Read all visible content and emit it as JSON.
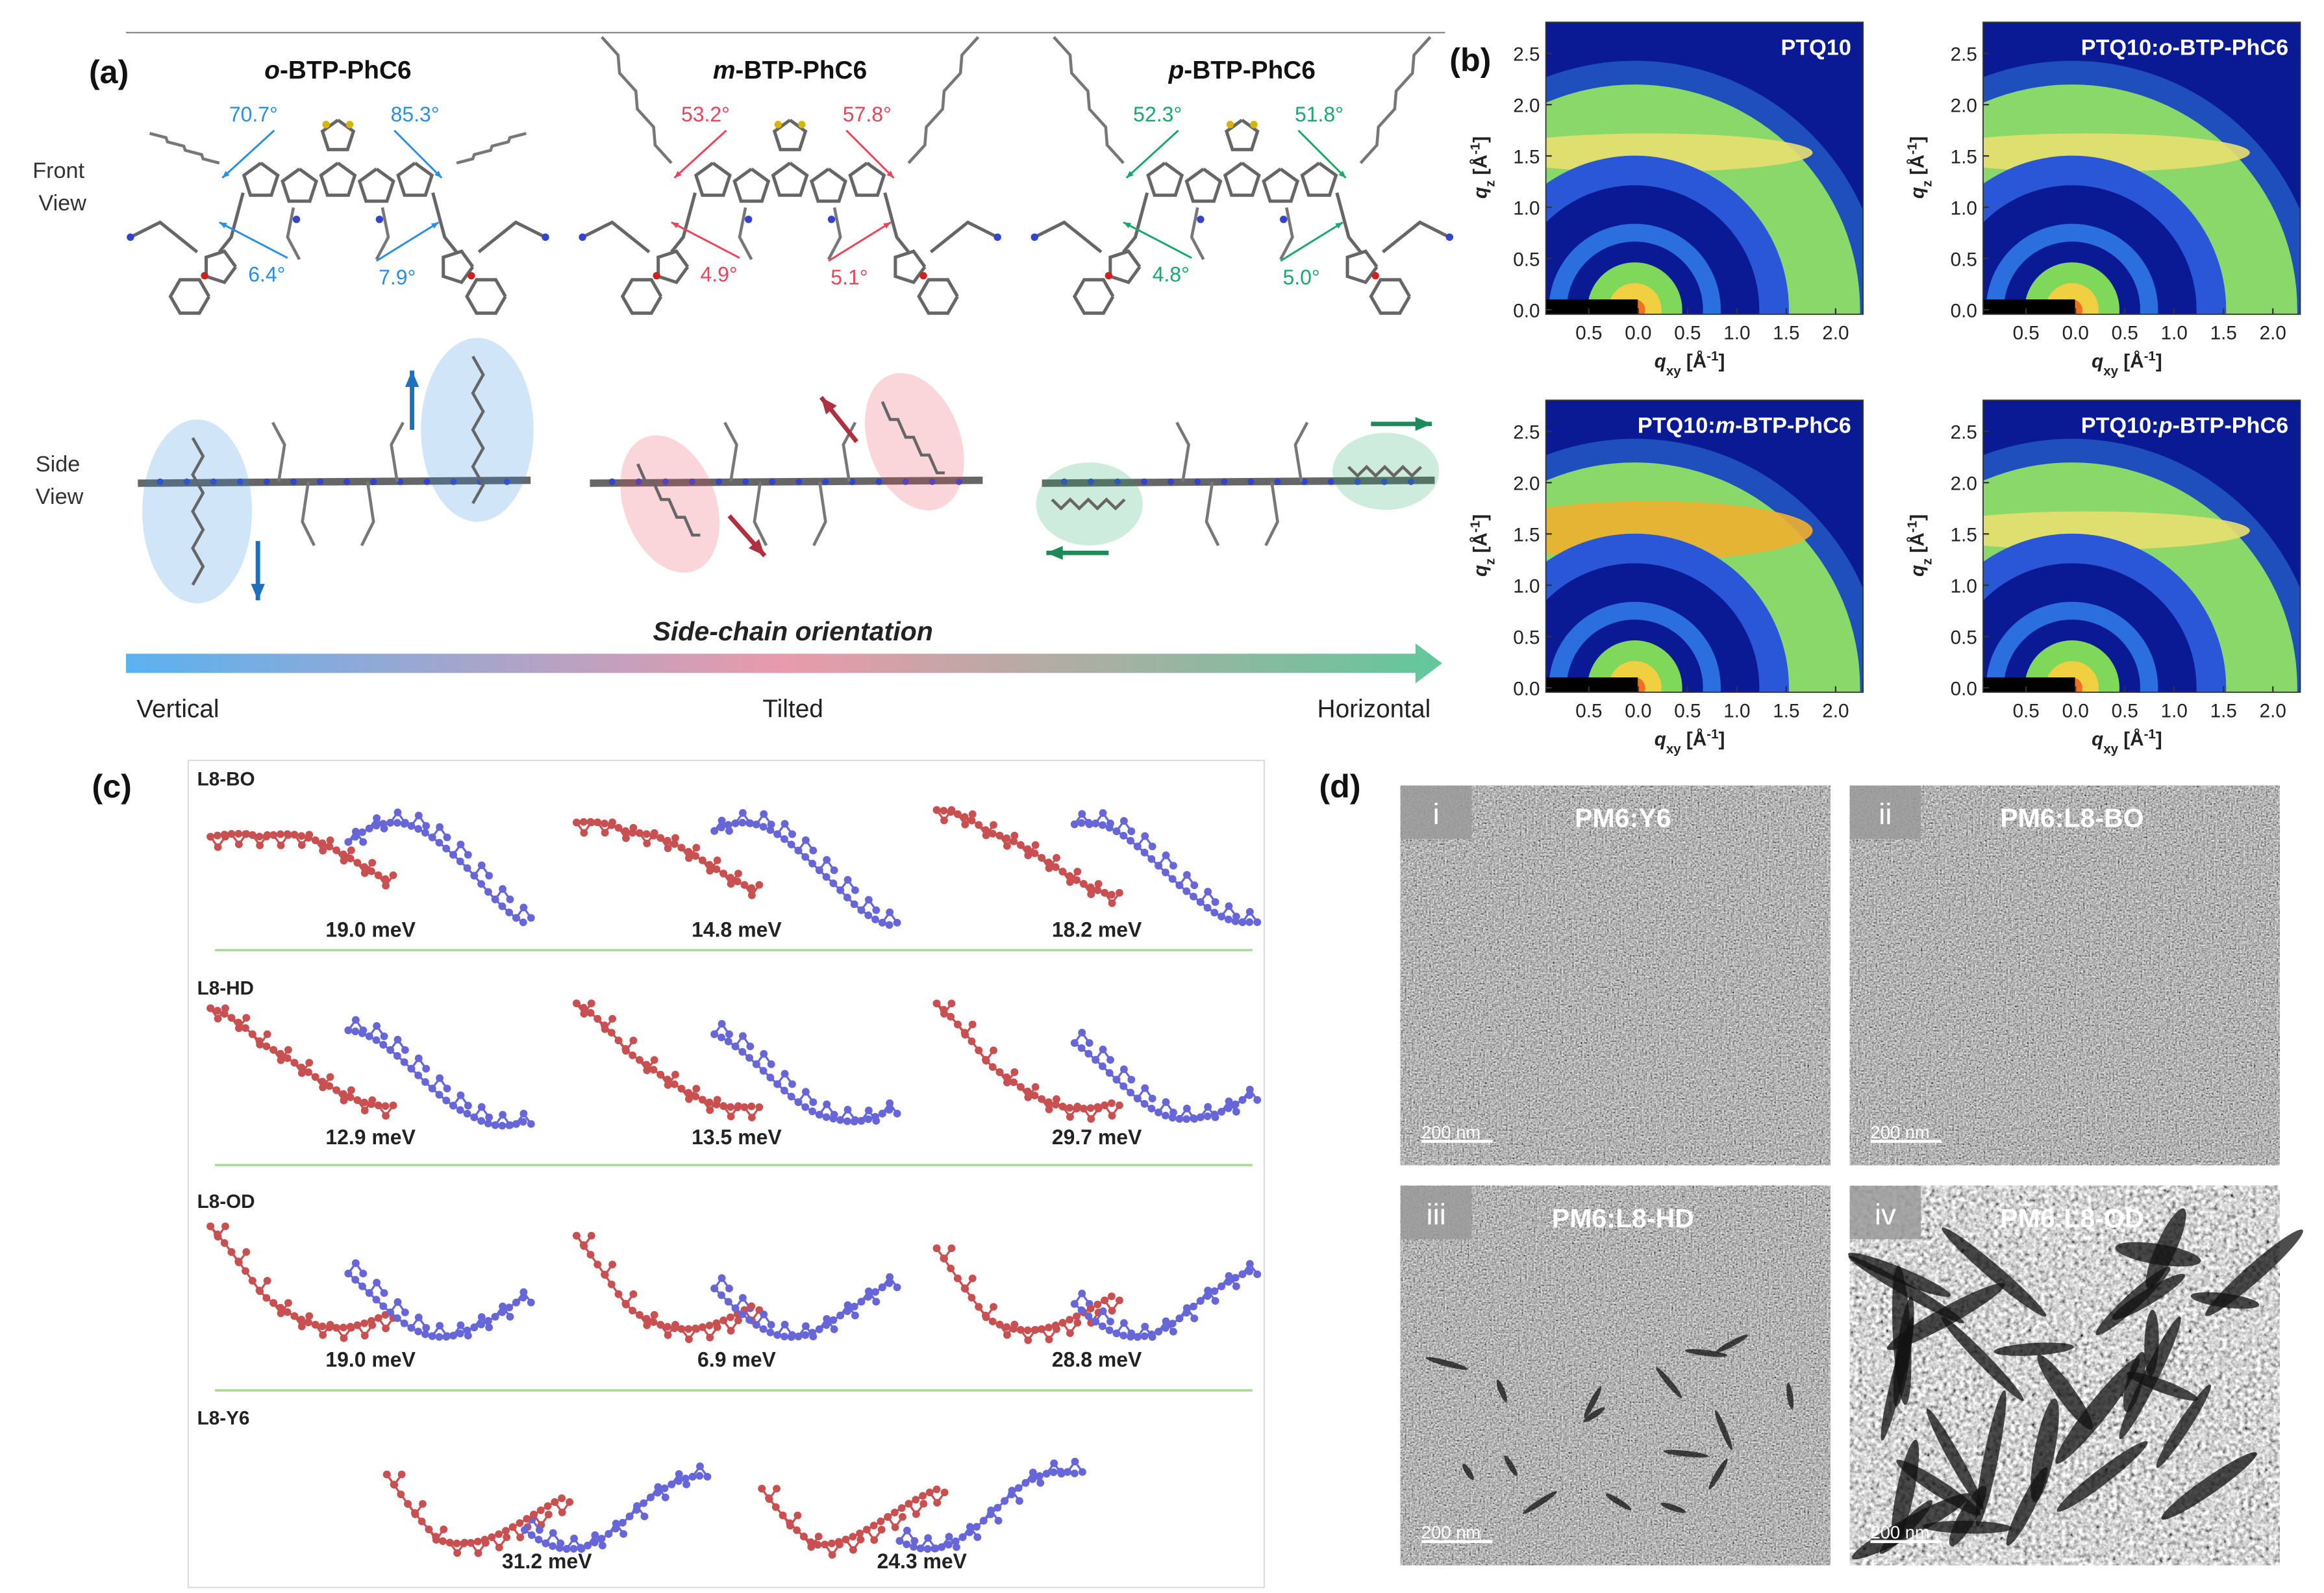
{
  "panel_a": {
    "label": "(a)",
    "front_view": [
      "Front",
      "View"
    ],
    "side_view": [
      "Side",
      "View"
    ],
    "molecules": [
      {
        "name": [
          "o",
          "-BTP-PhC6"
        ],
        "angles": [
          "70.7°",
          "85.3°",
          "6.4°",
          "7.9°"
        ]
      },
      {
        "name": [
          "m",
          "-BTP-PhC6"
        ],
        "angles": [
          "53.2°",
          "57.8°",
          "4.9°",
          "5.1°"
        ]
      },
      {
        "name": [
          "p",
          "-BTP-PhC6"
        ],
        "angles": [
          "52.3°",
          "51.8°",
          "4.8°",
          "5.0°"
        ]
      }
    ],
    "axis_title": "Side-chain orientation",
    "scale": [
      "Vertical",
      "Tilted",
      "Horizontal"
    ]
  },
  "panel_b": {
    "label": "(b)",
    "plots": [
      {
        "title": [
          "PTQ10"
        ]
      },
      {
        "title": [
          "PTQ10:",
          "o",
          "-BTP-PhC6"
        ]
      },
      {
        "title": [
          "PTQ10:",
          "m",
          "-BTP-PhC6"
        ]
      },
      {
        "title": [
          "PTQ10:",
          "p",
          "-BTP-PhC6"
        ]
      }
    ],
    "y_label": [
      "q",
      "z",
      " [Å",
      "-1",
      "]"
    ],
    "x_label": [
      "q",
      "xy",
      " [Å",
      "-1",
      "]"
    ],
    "y_ticks": [
      "0.0",
      "0.5",
      "1.0",
      "1.5",
      "2.0",
      "2.5"
    ],
    "x_ticks": [
      "0.5",
      "0.0",
      "0.5",
      "1.0",
      "1.5",
      "2.0"
    ]
  },
  "panel_c": {
    "label": "(c)",
    "rows": [
      {
        "name": "L8-BO",
        "energies": [
          "19.0 meV",
          "14.8 meV",
          "18.2 meV"
        ]
      },
      {
        "name": "L8-HD",
        "energies": [
          "12.9 meV",
          "13.5 meV",
          "29.7 meV"
        ]
      },
      {
        "name": "L8-OD",
        "energies": [
          "19.0 meV",
          "6.9 meV",
          "28.8 meV"
        ]
      },
      {
        "name": "L8-Y6",
        "energies": [
          "31.2 meV",
          "24.3 meV"
        ]
      }
    ]
  },
  "panel_d": {
    "label": "(d)",
    "images": [
      {
        "index": "i",
        "title": "PM6:Y6"
      },
      {
        "index": "ii",
        "title": "PM6:L8-BO"
      },
      {
        "index": "iii",
        "title": "PM6:L8-HD"
      },
      {
        "index": "iv",
        "title": "PM6:L8-OD"
      }
    ],
    "scale_bar": "200 nm"
  }
}
